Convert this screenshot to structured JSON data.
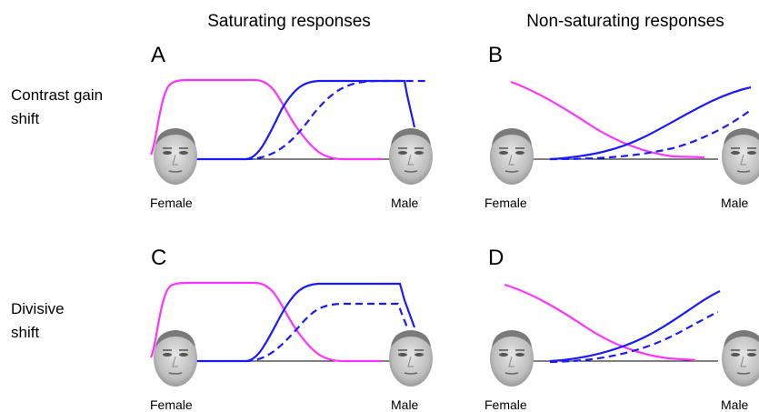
{
  "columns": [
    "Saturating responses",
    "Non-saturating responses"
  ],
  "rows": [
    [
      "Contrast gain",
      "shift"
    ],
    [
      "Divisive",
      "shift"
    ]
  ],
  "panels": [
    {
      "letter": "A",
      "left": "Female",
      "right": "Male"
    },
    {
      "letter": "B",
      "left": "Female",
      "right": "Male"
    },
    {
      "letter": "C",
      "left": "Female",
      "right": "Male"
    },
    {
      "letter": "D",
      "left": "Female",
      "right": "Male"
    }
  ]
}
